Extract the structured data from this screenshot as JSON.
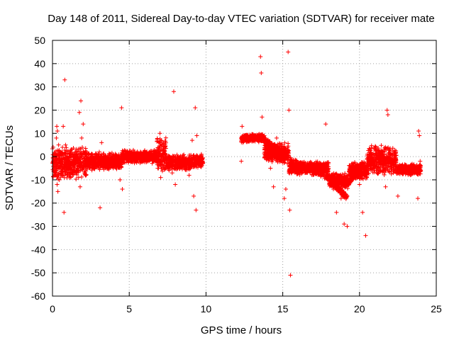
{
  "chart_data": {
    "type": "scatter",
    "title": "Day 148 of 2011, Sidereal Day-to-day VTEC variation (SDTVAR) for receiver mate",
    "xlabel": "GPS time / hours",
    "ylabel": "SDTVAR / TECUs",
    "xlim": [
      0,
      25
    ],
    "ylim": [
      -60,
      50
    ],
    "x_ticks": [
      0,
      5,
      10,
      15,
      20,
      25
    ],
    "y_ticks": [
      -60,
      -50,
      -40,
      -30,
      -20,
      -10,
      0,
      10,
      20,
      30,
      40,
      50
    ],
    "x_tick_labels": [
      "0",
      "5",
      "10",
      "15",
      "20",
      "25"
    ],
    "y_tick_labels": [
      "-60",
      "-50",
      "-40",
      "-30",
      "-20",
      "-10",
      "0",
      "10",
      "20",
      "30",
      "40",
      "50"
    ],
    "grid": true,
    "marker": "+",
    "marker_color": "#ff0000",
    "series": [
      {
        "name": "SDTVAR",
        "points": [
          [
            0.05,
            -2
          ],
          [
            0.12,
            -4
          ],
          [
            0.2,
            -7
          ],
          [
            0.25,
            8
          ],
          [
            0.28,
            13
          ],
          [
            0.3,
            -12
          ],
          [
            0.32,
            11
          ],
          [
            0.35,
            -15
          ],
          [
            0.4,
            5
          ],
          [
            0.45,
            -10
          ],
          [
            0.5,
            -3
          ],
          [
            0.55,
            2
          ],
          [
            0.6,
            -8
          ],
          [
            0.65,
            4
          ],
          [
            0.7,
            13
          ],
          [
            0.75,
            -24
          ],
          [
            0.8,
            33
          ],
          [
            0.85,
            5
          ],
          [
            0.9,
            -6
          ],
          [
            1.0,
            -1
          ],
          [
            1.1,
            -4
          ],
          [
            1.2,
            -9
          ],
          [
            1.3,
            -2
          ],
          [
            1.4,
            -6
          ],
          [
            1.5,
            0
          ],
          [
            1.6,
            -5
          ],
          [
            1.7,
            -9
          ],
          [
            1.75,
            19
          ],
          [
            1.8,
            -13
          ],
          [
            1.85,
            24
          ],
          [
            1.9,
            8
          ],
          [
            2.0,
            14
          ],
          [
            2.1,
            -4
          ],
          [
            2.3,
            -2
          ],
          [
            2.5,
            -3
          ],
          [
            2.7,
            -1
          ],
          [
            2.9,
            -3
          ],
          [
            3.05,
            2
          ],
          [
            3.1,
            -22
          ],
          [
            3.2,
            6
          ],
          [
            3.3,
            -1
          ],
          [
            3.5,
            0
          ],
          [
            3.8,
            -1
          ],
          [
            4.2,
            0
          ],
          [
            4.4,
            -10
          ],
          [
            4.5,
            21
          ],
          [
            4.55,
            -14
          ],
          [
            4.8,
            0
          ],
          [
            5.2,
            1
          ],
          [
            5.6,
            1
          ],
          [
            6.0,
            1
          ],
          [
            6.3,
            1
          ],
          [
            6.6,
            1
          ],
          [
            6.9,
            -5
          ],
          [
            7.0,
            10
          ],
          [
            7.05,
            -9
          ],
          [
            7.2,
            6
          ],
          [
            7.5,
            -3
          ],
          [
            7.8,
            -7
          ],
          [
            7.9,
            28
          ],
          [
            8.0,
            -12
          ],
          [
            8.3,
            -4
          ],
          [
            8.6,
            -3
          ],
          [
            8.9,
            -8
          ],
          [
            9.0,
            -3
          ],
          [
            9.1,
            7
          ],
          [
            9.2,
            -17
          ],
          [
            9.3,
            21
          ],
          [
            9.35,
            -23
          ],
          [
            9.4,
            9
          ],
          [
            9.6,
            -3
          ],
          [
            9.7,
            1
          ],
          [
            9.8,
            -3
          ],
          [
            12.3,
            -2
          ],
          [
            12.35,
            13
          ],
          [
            12.4,
            6
          ],
          [
            12.5,
            9
          ],
          [
            12.7,
            8
          ],
          [
            12.9,
            8
          ],
          [
            13.1,
            8
          ],
          [
            13.3,
            8
          ],
          [
            13.5,
            7
          ],
          [
            13.55,
            43
          ],
          [
            13.6,
            36
          ],
          [
            13.65,
            17
          ],
          [
            13.8,
            6
          ],
          [
            14.0,
            4
          ],
          [
            14.2,
            -5
          ],
          [
            14.4,
            -13
          ],
          [
            14.6,
            8
          ],
          [
            14.8,
            0
          ],
          [
            15.0,
            -1
          ],
          [
            15.1,
            -18
          ],
          [
            15.2,
            -14
          ],
          [
            15.3,
            -3
          ],
          [
            15.35,
            45
          ],
          [
            15.4,
            20
          ],
          [
            15.45,
            -23
          ],
          [
            15.5,
            -51
          ],
          [
            15.7,
            -4
          ],
          [
            16.0,
            -5
          ],
          [
            16.5,
            -6
          ],
          [
            17.0,
            -7
          ],
          [
            17.5,
            -8
          ],
          [
            17.8,
            14
          ],
          [
            18.0,
            -10
          ],
          [
            18.3,
            -14
          ],
          [
            18.5,
            -24
          ],
          [
            18.8,
            -18
          ],
          [
            18.9,
            -10
          ],
          [
            19.0,
            -29
          ],
          [
            19.2,
            -30
          ],
          [
            19.5,
            -6
          ],
          [
            19.8,
            -4
          ],
          [
            20.0,
            -12
          ],
          [
            20.2,
            -24
          ],
          [
            20.4,
            -34
          ],
          [
            20.6,
            -5
          ],
          [
            20.8,
            0
          ],
          [
            21.0,
            4
          ],
          [
            21.2,
            3
          ],
          [
            21.5,
            2
          ],
          [
            21.7,
            -13
          ],
          [
            21.8,
            20
          ],
          [
            21.85,
            18
          ],
          [
            22.0,
            3
          ],
          [
            22.3,
            0
          ],
          [
            22.5,
            -17
          ],
          [
            22.8,
            -4
          ],
          [
            23.0,
            -5
          ],
          [
            23.3,
            -5
          ],
          [
            23.6,
            -6
          ],
          [
            23.8,
            -18
          ],
          [
            23.85,
            11
          ],
          [
            23.9,
            9
          ],
          [
            23.95,
            -2
          ]
        ],
        "dense_bands": [
          {
            "x0": 0.0,
            "x1": 2.2,
            "y0": -10,
            "y1": 5
          },
          {
            "x0": 2.2,
            "x1": 4.5,
            "y0": -6,
            "y1": 2
          },
          {
            "x0": 4.5,
            "x1": 6.8,
            "y0": -3,
            "y1": 3
          },
          {
            "x0": 6.8,
            "x1": 7.4,
            "y0": -8,
            "y1": 9
          },
          {
            "x0": 7.4,
            "x1": 9.0,
            "y0": -6,
            "y1": 1
          },
          {
            "x0": 9.0,
            "x1": 9.8,
            "y0": -5,
            "y1": 1
          },
          {
            "x0": 12.3,
            "x1": 13.8,
            "y0": 6,
            "y1": 10
          },
          {
            "x0": 13.8,
            "x1": 15.4,
            "y0": -3,
            "y1": 6
          },
          {
            "x0": 15.4,
            "x1": 18.0,
            "y0": -8,
            "y1": -2
          },
          {
            "x0": 18.0,
            "x1": 19.3,
            "y0": -14,
            "y1": -7
          },
          {
            "x0": 19.3,
            "x1": 20.5,
            "y0": -10,
            "y1": -2
          },
          {
            "x0": 20.5,
            "x1": 22.4,
            "y0": -8,
            "y1": 5
          },
          {
            "x0": 22.4,
            "x1": 24.0,
            "y0": -8,
            "y1": -3
          }
        ],
        "trends": [
          {
            "x0": 15.0,
            "y0": 0,
            "x1": 19.0,
            "y1": -12
          },
          {
            "x0": 17.8,
            "y0": -8,
            "x1": 19.2,
            "y1": -18
          },
          {
            "x0": 19.2,
            "y0": -12,
            "x1": 20.2,
            "y1": -3
          },
          {
            "x0": 13.8,
            "y0": 7,
            "x1": 15.2,
            "y1": 1
          }
        ]
      }
    ]
  }
}
